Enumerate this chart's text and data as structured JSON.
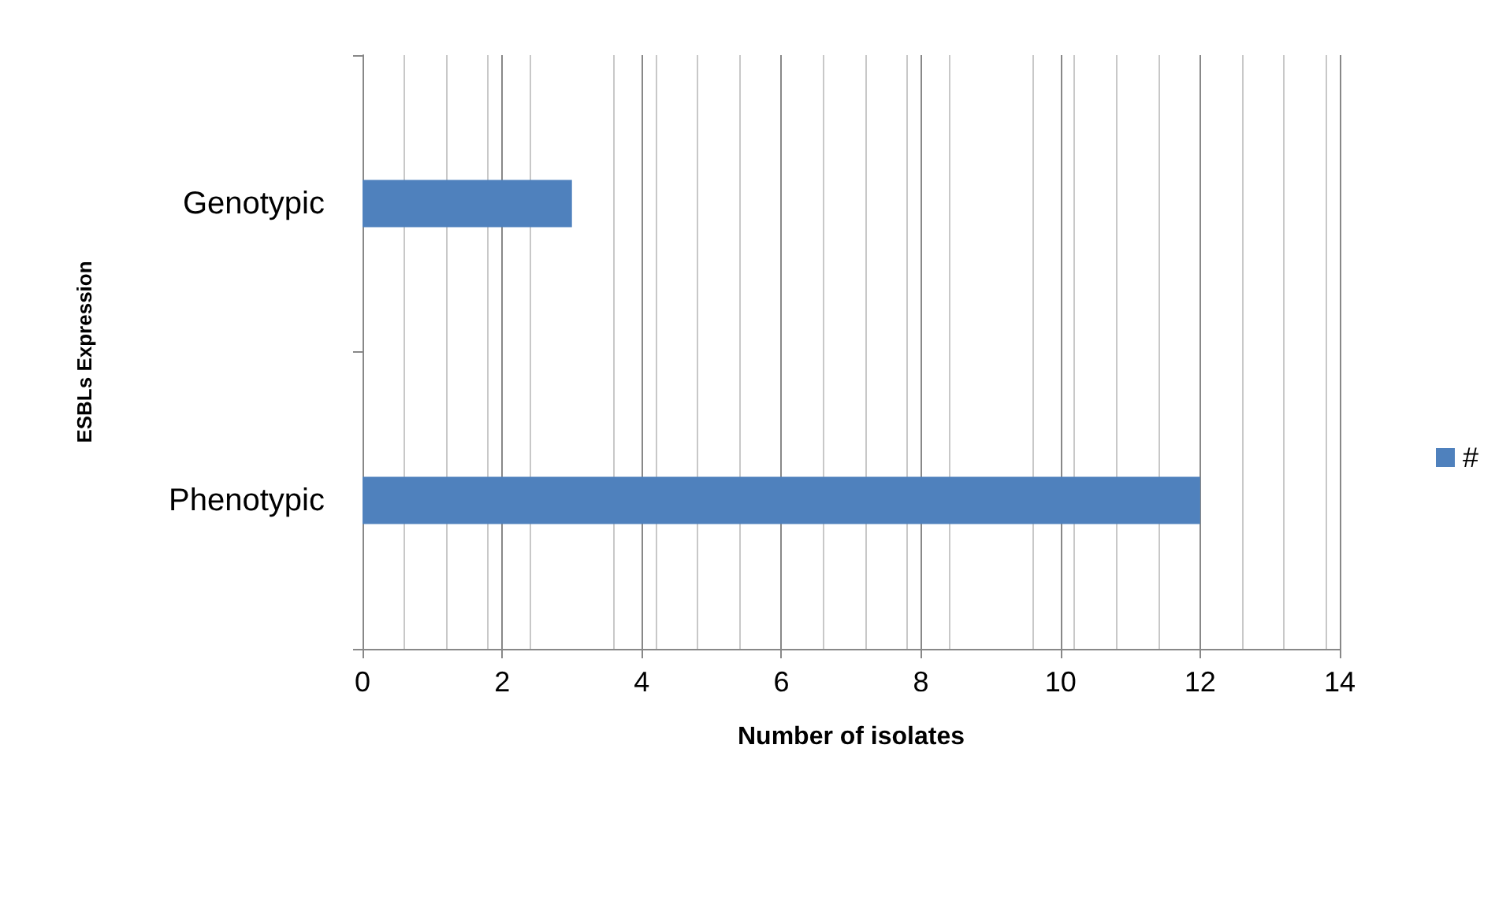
{
  "chart_data": {
    "type": "bar",
    "orientation": "horizontal",
    "xlabel": "Number of isolates",
    "ylabel": "ESBLs Expression",
    "categories": [
      "Genotypic",
      "Phenotypic"
    ],
    "series": [
      {
        "name": "#",
        "color": "#4f81bd",
        "values": [
          3,
          12
        ]
      }
    ],
    "xlim": [
      0,
      14
    ],
    "xticks": [
      0,
      2,
      4,
      6,
      8,
      10,
      12,
      14
    ],
    "grid": "x",
    "legend": "right"
  }
}
